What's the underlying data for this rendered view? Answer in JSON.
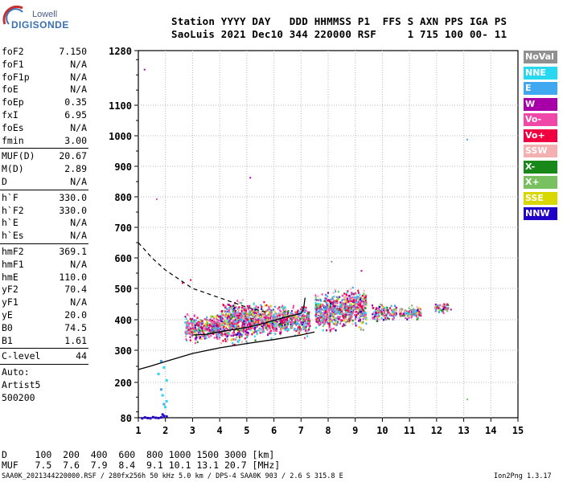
{
  "logo": {
    "line1": "Lowell",
    "line2": "DIGISONDE"
  },
  "header": {
    "row1": "Station YYYY DAY   DDD HHMMSS P1  FFS S AXN PPS IGA PS",
    "row2": "SaoLuis 2021 Dec10 344 220000 RSF     1 715 100 00- 11"
  },
  "params_group1": [
    {
      "key": "foF2",
      "value": "7.150"
    },
    {
      "key": "foF1",
      "value": "N/A"
    },
    {
      "key": "foF1p",
      "value": "N/A"
    },
    {
      "key": "foE",
      "value": "N/A"
    },
    {
      "key": "foEp",
      "value": "0.35"
    },
    {
      "key": "fxI",
      "value": "6.95"
    },
    {
      "key": "foEs",
      "value": "N/A"
    },
    {
      "key": "fmin",
      "value": "3.00"
    }
  ],
  "params_group2": [
    {
      "key": "MUF(D)",
      "value": "20.67"
    },
    {
      "key": "M(D)",
      "value": "2.89"
    },
    {
      "key": "D",
      "value": "N/A"
    }
  ],
  "params_group3": [
    {
      "key": "h`F",
      "value": "330.0"
    },
    {
      "key": "h`F2",
      "value": "330.0"
    },
    {
      "key": "h`E",
      "value": "N/A"
    },
    {
      "key": "h`Es",
      "value": "N/A"
    }
  ],
  "params_group4": [
    {
      "key": "hmF2",
      "value": "369.1"
    },
    {
      "key": "hmF1",
      "value": "N/A"
    },
    {
      "key": "hmE",
      "value": "110.0"
    },
    {
      "key": "yF2",
      "value": "70.4"
    },
    {
      "key": "yF1",
      "value": "N/A"
    },
    {
      "key": "yE",
      "value": "20.0"
    },
    {
      "key": "B0",
      "value": "74.5"
    },
    {
      "key": "B1",
      "value": "1.61"
    }
  ],
  "c_level": {
    "key": "C-level",
    "value": "44"
  },
  "autoscale": {
    "line1": "Auto:",
    "line2": "Artist5",
    "line3": "500200"
  },
  "legend": [
    {
      "label": "NoVal",
      "color": "#909090"
    },
    {
      "label": "NNE",
      "color": "#28d8f0"
    },
    {
      "label": "E",
      "color": "#40a8f0"
    },
    {
      "label": "W",
      "color": "#a800a8"
    },
    {
      "label": "Vo-",
      "color": "#f048a8"
    },
    {
      "label": "Vo+",
      "color": "#f00040"
    },
    {
      "label": "SSW",
      "color": "#f4b0b0"
    },
    {
      "label": "X-",
      "color": "#188818"
    },
    {
      "label": "X+",
      "color": "#78c060"
    },
    {
      "label": "SSE",
      "color": "#d8d800"
    },
    {
      "label": "NNW",
      "color": "#2000c8"
    }
  ],
  "chart_data": {
    "type": "scatter",
    "x_ticks": [
      "1",
      "2",
      "3",
      "4",
      "5",
      "6",
      "7",
      "8",
      "9",
      "10",
      "11",
      "12",
      "13",
      "14",
      "15"
    ],
    "y_ticks": [
      "80",
      "200",
      "300",
      "400",
      "500",
      "600",
      "700",
      "800",
      "900",
      "1000",
      "1100",
      "1280"
    ],
    "xlim": [
      1,
      15
    ],
    "ylim": [
      80,
      1280
    ],
    "grid": true,
    "traces": {
      "lower_bound": [
        [
          1,
          240
        ],
        [
          1.5,
          252
        ],
        [
          2,
          265
        ],
        [
          3,
          290
        ],
        [
          4,
          308
        ],
        [
          5,
          322
        ],
        [
          6,
          335
        ],
        [
          7,
          350
        ],
        [
          7.5,
          360
        ]
      ],
      "upper_dashed": [
        [
          1,
          650
        ],
        [
          1.5,
          600
        ],
        [
          2,
          560
        ],
        [
          3,
          500
        ],
        [
          4,
          470
        ],
        [
          5,
          440
        ],
        [
          5.7,
          425
        ]
      ],
      "profile_mid": [
        [
          3,
          350
        ],
        [
          3.5,
          352
        ],
        [
          4,
          360
        ],
        [
          4.5,
          368
        ],
        [
          5,
          375
        ],
        [
          5.5,
          385
        ],
        [
          6,
          398
        ],
        [
          6.5,
          410
        ],
        [
          7,
          420
        ],
        [
          7.1,
          440
        ],
        [
          7.15,
          470
        ]
      ]
    },
    "clusters": [
      {
        "x": [
          2.7,
          4.0
        ],
        "y": [
          320,
          430
        ]
      },
      {
        "x": [
          4.0,
          5.0
        ],
        "y": [
          310,
          480
        ]
      },
      {
        "x": [
          5.0,
          6.0
        ],
        "y": [
          330,
          470
        ]
      },
      {
        "x": [
          6.0,
          7.3
        ],
        "y": [
          340,
          460
        ]
      },
      {
        "x": [
          7.5,
          8.6
        ],
        "y": [
          350,
          510
        ]
      },
      {
        "x": [
          8.6,
          9.4
        ],
        "y": [
          360,
          520
        ]
      },
      {
        "x": [
          9.6,
          10.5
        ],
        "y": [
          390,
          460
        ]
      },
      {
        "x": [
          10.6,
          11.4
        ],
        "y": [
          400,
          450
        ]
      },
      {
        "x": [
          11.9,
          12.4
        ],
        "y": [
          420,
          460
        ]
      }
    ],
    "outliers": [
      [
        1.2,
        1220
      ],
      [
        1.65,
        795
      ],
      [
        5.1,
        865
      ],
      [
        13.1,
        990
      ],
      [
        13.1,
        145
      ],
      [
        2.6,
        520
      ],
      [
        2.9,
        530
      ],
      [
        8.1,
        590
      ],
      [
        9.2,
        560
      ],
      [
        12.5,
        435
      ]
    ],
    "low_echoes": [
      [
        1.1,
        82
      ],
      [
        1.2,
        85
      ],
      [
        1.3,
        83
      ],
      [
        1.4,
        82
      ],
      [
        1.5,
        86
      ],
      [
        1.6,
        84
      ],
      [
        1.7,
        83
      ],
      [
        1.8,
        85
      ],
      [
        1.9,
        90
      ],
      [
        1.85,
        95
      ],
      [
        2.0,
        88
      ],
      [
        1.9,
        130
      ],
      [
        1.85,
        160
      ],
      [
        1.8,
        180
      ],
      [
        2.0,
        210
      ],
      [
        1.9,
        250
      ],
      [
        1.8,
        270
      ],
      [
        1.7,
        230
      ],
      [
        2.0,
        140
      ],
      [
        1.95,
        120
      ]
    ]
  },
  "bottom_table": {
    "row1": "D     100  200  400  600  800 1000 1500 3000 [km]",
    "row2": "MUF   7.5  7.6  7.9  8.4  9.1 10.1 13.1 20.7 [MHz]"
  },
  "footer": {
    "left": "SAA0K_2021344220000.RSF / 280fx256h 50 kHz 5.0 km / DPS-4 SAA0K 903 / 2.6 S 315.8 E",
    "right": "Ion2Png 1.3.17"
  }
}
